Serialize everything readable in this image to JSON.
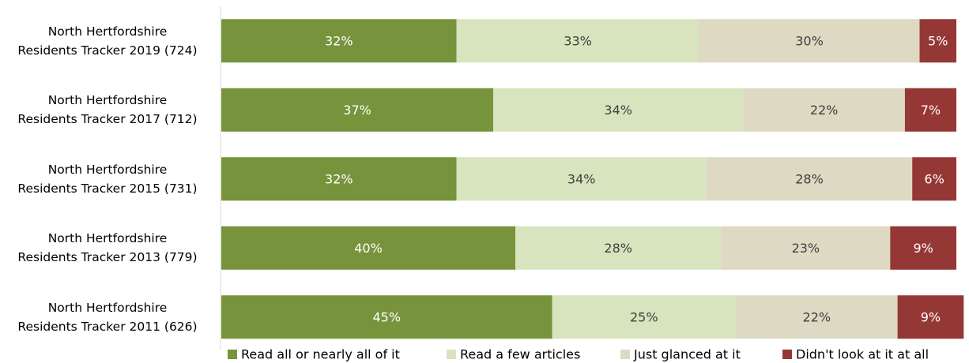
{
  "chart_data": {
    "type": "stacked-bar-horizontal",
    "categories": [
      "North Hertfordshire\nResidents Tracker 2019 (724)",
      "North Hertfordshire\nResidents Tracker 2017 (712)",
      "North Hertfordshire\nResidents Tracker 2015 (731)",
      "North Hertfordshire\nResidents Tracker 2013 (779)",
      "North Hertfordshire\nResidents Tracker 2011 (626)"
    ],
    "series": [
      {
        "name": "Read all or nearly all of it",
        "color": "#77933c",
        "label_color": "#ffffff",
        "values": [
          32,
          37,
          32,
          40,
          45
        ],
        "value_labels": [
          "32%",
          "37%",
          "32%",
          "40%",
          "45%"
        ]
      },
      {
        "name": "Read a few articles",
        "color": "#d7e4bd",
        "label_color": "#404040",
        "values": [
          33,
          34,
          34,
          28,
          25
        ],
        "value_labels": [
          "33%",
          "34%",
          "34%",
          "28%",
          "25%"
        ]
      },
      {
        "name": "Just glanced at it",
        "color": "#ddd9c3",
        "label_color": "#404040",
        "values": [
          30,
          22,
          28,
          23,
          22
        ],
        "value_labels": [
          "30%",
          "22%",
          "28%",
          "23%",
          "22%"
        ]
      },
      {
        "name": "Didn't look at it at all",
        "color": "#953735",
        "label_color": "#ffffff",
        "values": [
          5,
          7,
          6,
          9,
          9
        ],
        "value_labels": [
          "5%",
          "7%",
          "6%",
          "9%",
          "9%"
        ]
      }
    ],
    "xlim": [
      0,
      100
    ],
    "legend": "bottom"
  }
}
